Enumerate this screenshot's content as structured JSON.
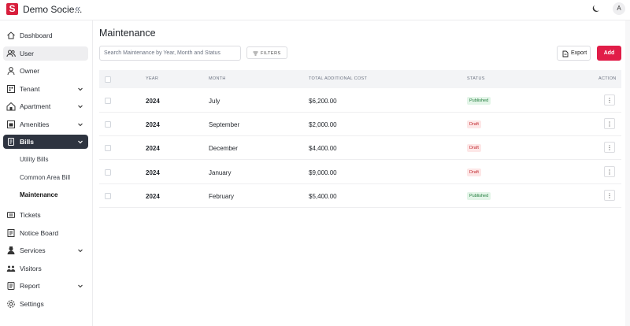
{
  "app": {
    "title": "Demo Socie...",
    "avatar_initial": "A"
  },
  "sidebar": {
    "items": [
      {
        "label": "Dashboard",
        "icon": "home-icon"
      },
      {
        "label": "User",
        "icon": "users-icon"
      },
      {
        "label": "Owner",
        "icon": "person-icon"
      },
      {
        "label": "Tenant",
        "icon": "tenant-icon",
        "expandable": true
      },
      {
        "label": "Apartment",
        "icon": "building-icon",
        "expandable": true
      },
      {
        "label": "Amenities",
        "icon": "amenities-icon",
        "expandable": true
      },
      {
        "label": "Bills",
        "icon": "bill-icon",
        "expandable": true,
        "expanded": true
      },
      {
        "label": "Tickets",
        "icon": "ticket-icon"
      },
      {
        "label": "Notice Board",
        "icon": "notice-icon"
      },
      {
        "label": "Services",
        "icon": "services-icon",
        "expandable": true
      },
      {
        "label": "Visitors",
        "icon": "visitors-icon"
      },
      {
        "label": "Report",
        "icon": "report-icon",
        "expandable": true
      },
      {
        "label": "Settings",
        "icon": "settings-icon"
      }
    ],
    "bills_sub": [
      "Utility Bills",
      "Common Area Bill",
      "Maintenance"
    ]
  },
  "main": {
    "title": "Maintenance",
    "search_placeholder": "Search Maintenance by Year, Month and Status",
    "filters_label": "FILTERS",
    "export_label": "Export",
    "add_label": "Add"
  },
  "table": {
    "headers": [
      "YEAR",
      "MONTH",
      "TOTAL ADDITIONAL COST",
      "STATUS",
      "ACTION"
    ],
    "rows": [
      {
        "year": "2024",
        "month": "July",
        "cost": "$6,200.00",
        "status": "Published"
      },
      {
        "year": "2024",
        "month": "September",
        "cost": "$2,000.00",
        "status": "Draft"
      },
      {
        "year": "2024",
        "month": "December",
        "cost": "$4,400.00",
        "status": "Draft"
      },
      {
        "year": "2024",
        "month": "January",
        "cost": "$9,000.00",
        "status": "Draft"
      },
      {
        "year": "2024",
        "month": "February",
        "cost": "$5,400.00",
        "status": "Published"
      }
    ]
  },
  "colors": {
    "accent": "#e11d48",
    "active_nav": "#2e3440",
    "published": "#1f7a3a",
    "draft": "#c0262d"
  }
}
